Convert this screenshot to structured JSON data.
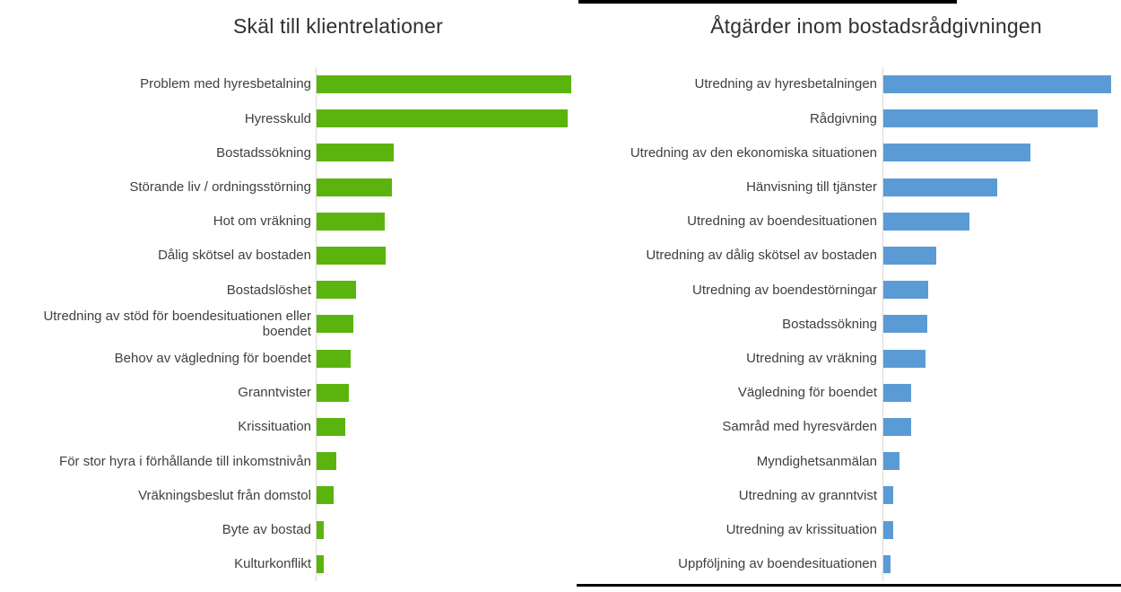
{
  "page": {
    "background": "#ffffff"
  },
  "chart_data": [
    {
      "type": "bar",
      "orientation": "horizontal",
      "title": "Skäl till klientrelationer",
      "bar_color": "#5bb40e",
      "axis_color": "#d9d9d9",
      "grid": false,
      "legend": false,
      "value_note": "No numeric axis shown in image; values are estimated relative bar lengths (screen px)",
      "xlim": [
        0,
        290
      ],
      "categories": [
        "Problem med hyresbetalning",
        "Hyresskuld",
        "Bostadssökning",
        "Störande liv / ordningsstörning",
        "Hot om vräkning",
        "Dålig skötsel av bostaden",
        "Bostadslöshet",
        "Utredning av stöd för boendesituationen eller boendet",
        "Behov av vägledning för boendet",
        "Granntvister",
        "Krissituation",
        "För stor hyra i förhållande till inkomstnivån",
        "Vräkningsbeslut från domstol",
        "Byte av bostad",
        "Kulturkonflikt"
      ],
      "values": [
        284,
        280,
        86,
        84,
        76,
        77,
        44,
        41,
        38,
        36,
        32,
        22,
        19,
        8,
        8
      ]
    },
    {
      "type": "bar",
      "orientation": "horizontal",
      "title": "Åtgärder inom bostadsrådgivningen",
      "bar_color": "#5b9bd5",
      "axis_color": "#d9d9d9",
      "grid": false,
      "legend": false,
      "value_note": "No numeric axis shown in image; values are estimated relative bar lengths (screen px)",
      "xlim": [
        0,
        260
      ],
      "categories": [
        "Utredning av hyresbetalningen",
        "Rådgivning",
        "Utredning av den ekonomiska situationen",
        "Hänvisning till tjänster",
        "Utredning av boendesituationen",
        "Utredning av dålig skötsel av bostaden",
        "Utredning av boendestörningar",
        "Bostadssökning",
        "Utredning av vräkning",
        "Vägledning för boendet",
        "Samråd med hyresvärden",
        "Myndighetsanmälan",
        "Utredning av granntvist",
        "Utredning av krissituation",
        "Uppföljning av boendesituationen"
      ],
      "values": [
        254,
        239,
        164,
        127,
        96,
        59,
        50,
        49,
        47,
        31,
        31,
        18,
        11,
        11,
        8
      ]
    }
  ]
}
